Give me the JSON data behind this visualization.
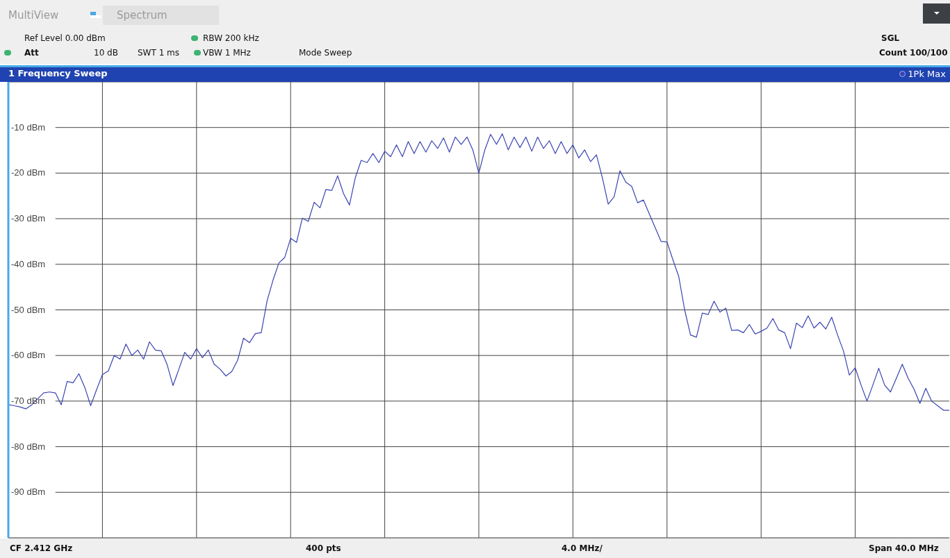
{
  "chart_data": {
    "type": "line",
    "title": "1 Frequency Sweep",
    "annotations": [
      "MultiView",
      "Spectrum",
      "Ref Level 0.00 dBm",
      "RBW 200 kHz",
      "SGL",
      "Att",
      "10 dB",
      "SWT 1 ms",
      "VBW 1 MHz",
      "Mode Sweep",
      "Count 100/100",
      "CF 2.412 GHz",
      "400 pts",
      "4.0 MHz/",
      "Span 40.0 MHz"
    ],
    "categories": [
      null,
      null,
      null,
      null,
      null,
      null,
      null,
      null,
      null,
      null,
      null,
      null,
      null,
      null,
      null,
      null,
      null,
      null,
      null,
      null,
      null,
      null,
      null,
      null,
      null,
      null,
      null,
      null,
      null,
      null,
      null,
      null,
      null,
      null,
      null,
      null,
      null,
      null,
      null,
      null,
      null,
      null,
      null,
      null,
      null,
      null,
      null,
      null,
      null,
      null,
      null,
      null,
      null,
      null,
      null,
      null,
      null,
      null,
      null,
      null,
      null,
      null,
      null,
      null,
      null,
      null,
      null,
      null,
      null,
      null,
      null,
      null,
      null,
      null,
      null,
      null,
      null,
      null,
      null,
      null,
      null,
      null,
      null,
      null,
      null,
      null,
      null,
      null,
      null,
      null,
      null,
      null,
      null,
      null,
      null,
      null,
      null,
      null,
      null,
      null,
      null,
      null,
      null,
      null,
      null,
      null,
      null,
      null,
      null,
      null,
      null,
      null,
      null,
      null,
      null,
      null,
      null,
      null,
      null,
      null,
      null,
      null,
      null,
      null,
      null,
      null,
      null,
      null,
      null,
      null,
      null,
      null,
      null,
      null,
      null,
      null,
      null,
      null,
      null,
      null,
      null,
      null,
      null,
      null,
      null,
      null,
      null,
      null,
      null,
      null,
      null,
      null,
      null,
      null,
      null,
      null,
      null,
      null,
      null,
      null,
      null
    ],
    "series": [
      {
        "name": "1Pk Max",
        "color": "#3a44b0",
        "values": [
          -70.8,
          -71.0,
          -71.3,
          -71.7,
          -70.8,
          -69.5,
          -68.2,
          -68.0,
          -68.2,
          -70.8,
          -65.7,
          -66.0,
          -64.0,
          -67.0,
          -71.0,
          -67.5,
          -64.2,
          -63.4,
          -60.0,
          -60.8,
          -57.5,
          -60.0,
          -58.8,
          -60.8,
          -57.0,
          -58.8,
          -59.0,
          -62.0,
          -66.6,
          -63.0,
          -59.3,
          -60.8,
          -58.5,
          -60.5,
          -58.8,
          -61.9,
          -63.0,
          -64.5,
          -63.5,
          -61.0,
          -56.2,
          -57.2,
          -55.2,
          -55.0,
          -48.0,
          -43.5,
          -39.7,
          -38.5,
          -34.3,
          -35.2,
          -29.9,
          -30.6,
          -26.4,
          -27.6,
          -23.6,
          -23.8,
          -20.6,
          -24.5,
          -27.0,
          -21.0,
          -17.2,
          -17.7,
          -15.7,
          -17.7,
          -15.2,
          -16.4,
          -13.8,
          -16.4,
          -13.1,
          -15.7,
          -13.1,
          -15.4,
          -12.9,
          -14.6,
          -12.3,
          -15.4,
          -12.1,
          -13.7,
          -12.1,
          -15.0,
          -20.0,
          -15.0,
          -11.5,
          -13.7,
          -11.4,
          -14.9,
          -12.1,
          -14.4,
          -12.1,
          -15.2,
          -12.1,
          -14.6,
          -12.9,
          -15.7,
          -13.1,
          -15.7,
          -13.8,
          -16.7,
          -14.9,
          -17.5,
          -16.0,
          -21.0,
          -26.8,
          -25.2,
          -19.5,
          -22.0,
          -22.9,
          -26.5,
          -25.9,
          -29.0,
          -32.0,
          -35.0,
          -35.1,
          -39.0,
          -42.7,
          -50.0,
          -55.5,
          -56.0,
          -50.7,
          -51.0,
          -48.1,
          -50.5,
          -49.6,
          -54.5,
          -54.4,
          -55.0,
          -53.2,
          -55.3,
          -54.7,
          -54.0,
          -51.9,
          -54.4,
          -55.0,
          -58.5,
          -52.9,
          -53.9,
          -51.3,
          -54.0,
          -52.7,
          -54.2,
          -51.6,
          -55.5,
          -59.0,
          -64.3,
          -62.7,
          -66.5,
          -70.0,
          -66.5,
          -62.8,
          -66.5,
          -68.0,
          -65.0,
          -61.9,
          -65.0,
          -67.4,
          -70.5,
          -67.2,
          -70.0,
          -71.0,
          -72.0,
          -72.0
        ]
      }
    ],
    "ylim": [
      -100,
      0
    ],
    "yticks": [
      {
        "value": -10,
        "label": "-10 dBm"
      },
      {
        "value": -20,
        "label": "-20 dBm"
      },
      {
        "value": -30,
        "label": "-30 dBm"
      },
      {
        "value": -40,
        "label": "-40 dBm"
      },
      {
        "value": -50,
        "label": "-50 dBm"
      },
      {
        "value": -60,
        "label": "-60 dBm"
      },
      {
        "value": -70,
        "label": "-70 dBm"
      },
      {
        "value": -80,
        "label": "-80 dBm"
      },
      {
        "value": -90,
        "label": "-90 dBm"
      }
    ],
    "grid": true,
    "legend": "top right",
    "marker": "none",
    "line_style": "solid",
    "tick_labels": "y"
  }
}
